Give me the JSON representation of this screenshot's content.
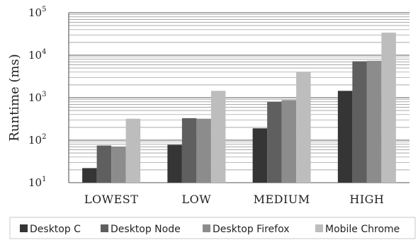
{
  "chart_data": {
    "type": "bar",
    "title": "",
    "xlabel": "",
    "ylabel": "Runtime (ms)",
    "y_scale": "log",
    "ylim": [
      10,
      100000
    ],
    "y_ticks": [
      {
        "base": "10",
        "exp": "1",
        "value": 10
      },
      {
        "base": "10",
        "exp": "2",
        "value": 100
      },
      {
        "base": "10",
        "exp": "3",
        "value": 1000
      },
      {
        "base": "10",
        "exp": "4",
        "value": 10000
      },
      {
        "base": "10",
        "exp": "5",
        "value": 100000
      }
    ],
    "grid": true,
    "legend_position": "bottom",
    "categories": [
      "LOWEST",
      "LOW",
      "MEDIUM",
      "HIGH"
    ],
    "series": [
      {
        "name": "Desktop C",
        "color": "#353535",
        "values": [
          22,
          78,
          190,
          1450
        ]
      },
      {
        "name": "Desktop Node",
        "color": "#5f5f5f",
        "values": [
          75,
          330,
          800,
          7200
        ]
      },
      {
        "name": "Desktop Firefox",
        "color": "#8c8c8c",
        "values": [
          70,
          320,
          880,
          7400
        ]
      },
      {
        "name": "Mobile Chrome",
        "color": "#bdbdbd",
        "values": [
          320,
          1450,
          4100,
          34000
        ]
      }
    ]
  }
}
